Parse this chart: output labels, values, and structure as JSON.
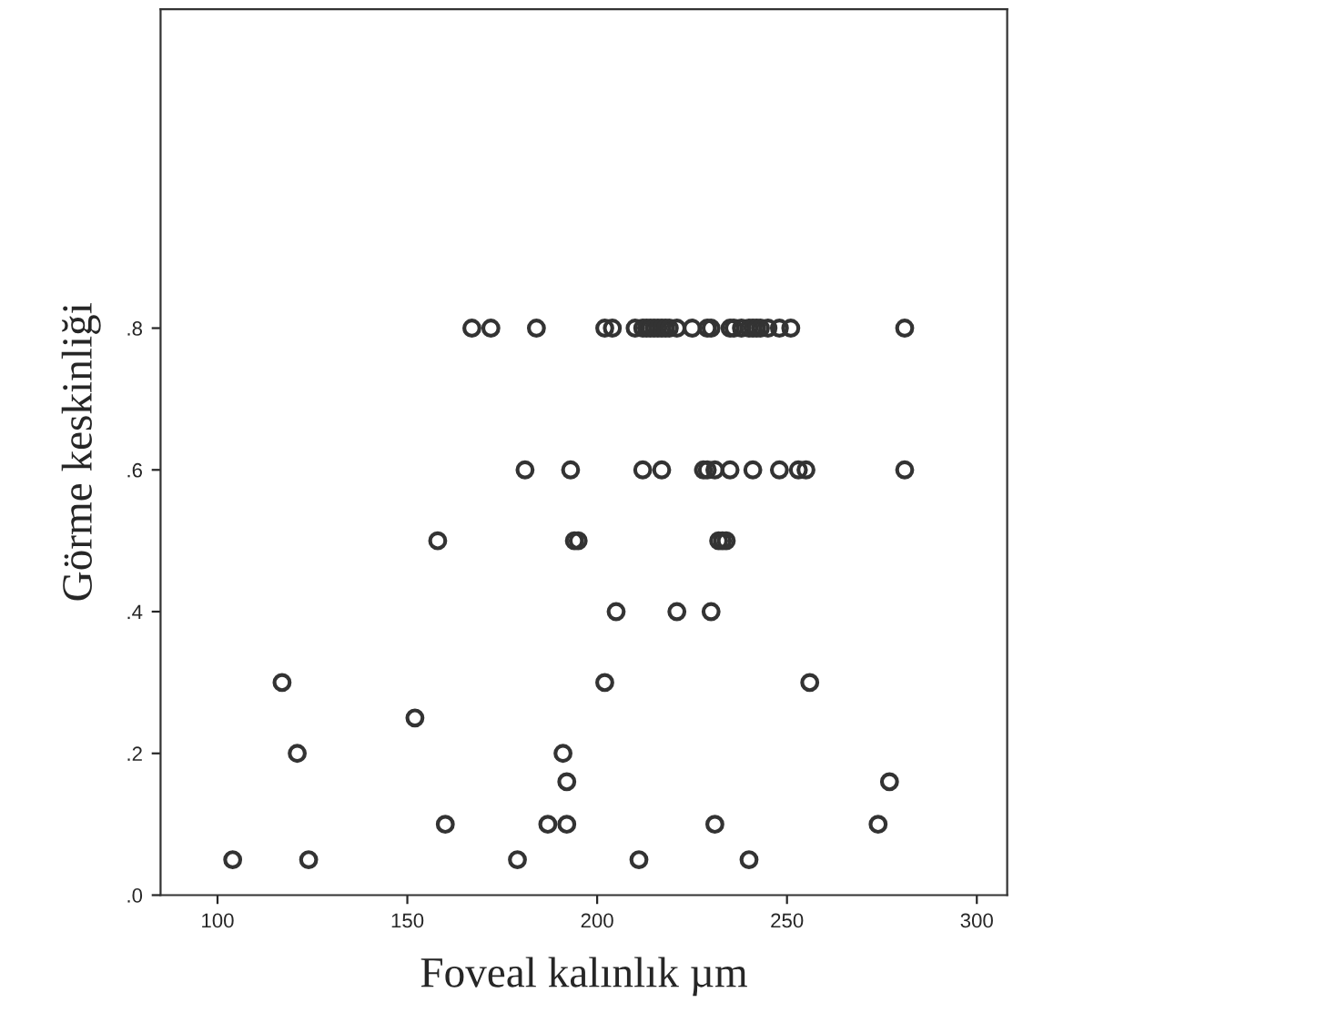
{
  "chart_data": {
    "type": "scatter",
    "xlabel": "Foveal kalınlık µm",
    "ylabel": "Görme keskinliği",
    "x": [
      167,
      172,
      184,
      202,
      204,
      210,
      212,
      213,
      214,
      215,
      216,
      217,
      218,
      219,
      221,
      225,
      229,
      230,
      235,
      236,
      238,
      240,
      241,
      242,
      243,
      245,
      248,
      251,
      281,
      181,
      193,
      212,
      217,
      228,
      229,
      231,
      235,
      241,
      248,
      253,
      255,
      281,
      158,
      194,
      195,
      232,
      233,
      234,
      205,
      221,
      230,
      117,
      202,
      256,
      152,
      121,
      191,
      192,
      277,
      160,
      187,
      192,
      231,
      274,
      104,
      124,
      179,
      211,
      240
    ],
    "values": [
      0.8,
      0.8,
      0.8,
      0.8,
      0.8,
      0.8,
      0.8,
      0.8,
      0.8,
      0.8,
      0.8,
      0.8,
      0.8,
      0.8,
      0.8,
      0.8,
      0.8,
      0.8,
      0.8,
      0.8,
      0.8,
      0.8,
      0.8,
      0.8,
      0.8,
      0.8,
      0.8,
      0.8,
      0.8,
      0.6,
      0.6,
      0.6,
      0.6,
      0.6,
      0.6,
      0.6,
      0.6,
      0.6,
      0.6,
      0.6,
      0.6,
      0.6,
      0.5,
      0.5,
      0.5,
      0.5,
      0.5,
      0.5,
      0.4,
      0.4,
      0.4,
      0.3,
      0.3,
      0.3,
      0.25,
      0.2,
      0.2,
      0.16,
      0.16,
      0.1,
      0.1,
      0.1,
      0.1,
      0.1,
      0.05,
      0.05,
      0.05,
      0.05,
      0.05
    ],
    "color": "#333333",
    "marker": "circle",
    "xlim": [
      85,
      308
    ],
    "xticks": [
      100,
      150,
      200,
      250,
      300
    ],
    "ylim": [
      0,
      1.25
    ],
    "yticks": [
      {
        "value": 0,
        "label": ".0"
      },
      {
        "value": 0.2,
        "label": ".2"
      },
      {
        "value": 0.4,
        "label": ".4"
      },
      {
        "value": 0.6,
        "label": ".6"
      },
      {
        "value": 0.8,
        "label": ".8"
      }
    ]
  }
}
